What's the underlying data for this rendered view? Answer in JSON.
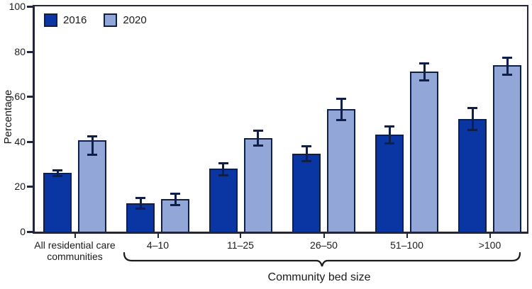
{
  "chart_data": {
    "type": "bar",
    "title": "",
    "ylabel": "Percentage",
    "xlabel": "Community bed size",
    "ylim": [
      0,
      100
    ],
    "yticks": [
      0,
      20,
      40,
      60,
      80,
      100
    ],
    "grid": false,
    "error_bars": true,
    "legend_position": "top-left",
    "categories": [
      "All residential care\ncommunities",
      "4–10",
      "11–25",
      "26–50",
      "51–100",
      ">100"
    ],
    "bracket_categories": [
      "4–10",
      "11–25",
      "26–50",
      "51–100",
      ">100"
    ],
    "series": [
      {
        "name": "2016",
        "color": "#0a36a3",
        "values": [
          26,
          12.5,
          28,
          34.5,
          43,
          50
        ],
        "ci_low": [
          24.5,
          10,
          25,
          31,
          39,
          45
        ],
        "ci_high": [
          27.5,
          15,
          30.5,
          38,
          47,
          55
        ]
      },
      {
        "name": "2020",
        "color": "#92a7d7",
        "values": [
          40.5,
          14.5,
          41.5,
          54.5,
          71,
          74
        ],
        "ci_low": [
          34,
          11.5,
          38,
          49.5,
          67,
          69.5
        ],
        "ci_high": [
          42.5,
          17,
          45,
          59,
          75,
          77.5
        ]
      }
    ],
    "colors": {
      "bar_outline": "#101f4a",
      "axis": "#232638",
      "text": "#1a1a1a"
    }
  }
}
